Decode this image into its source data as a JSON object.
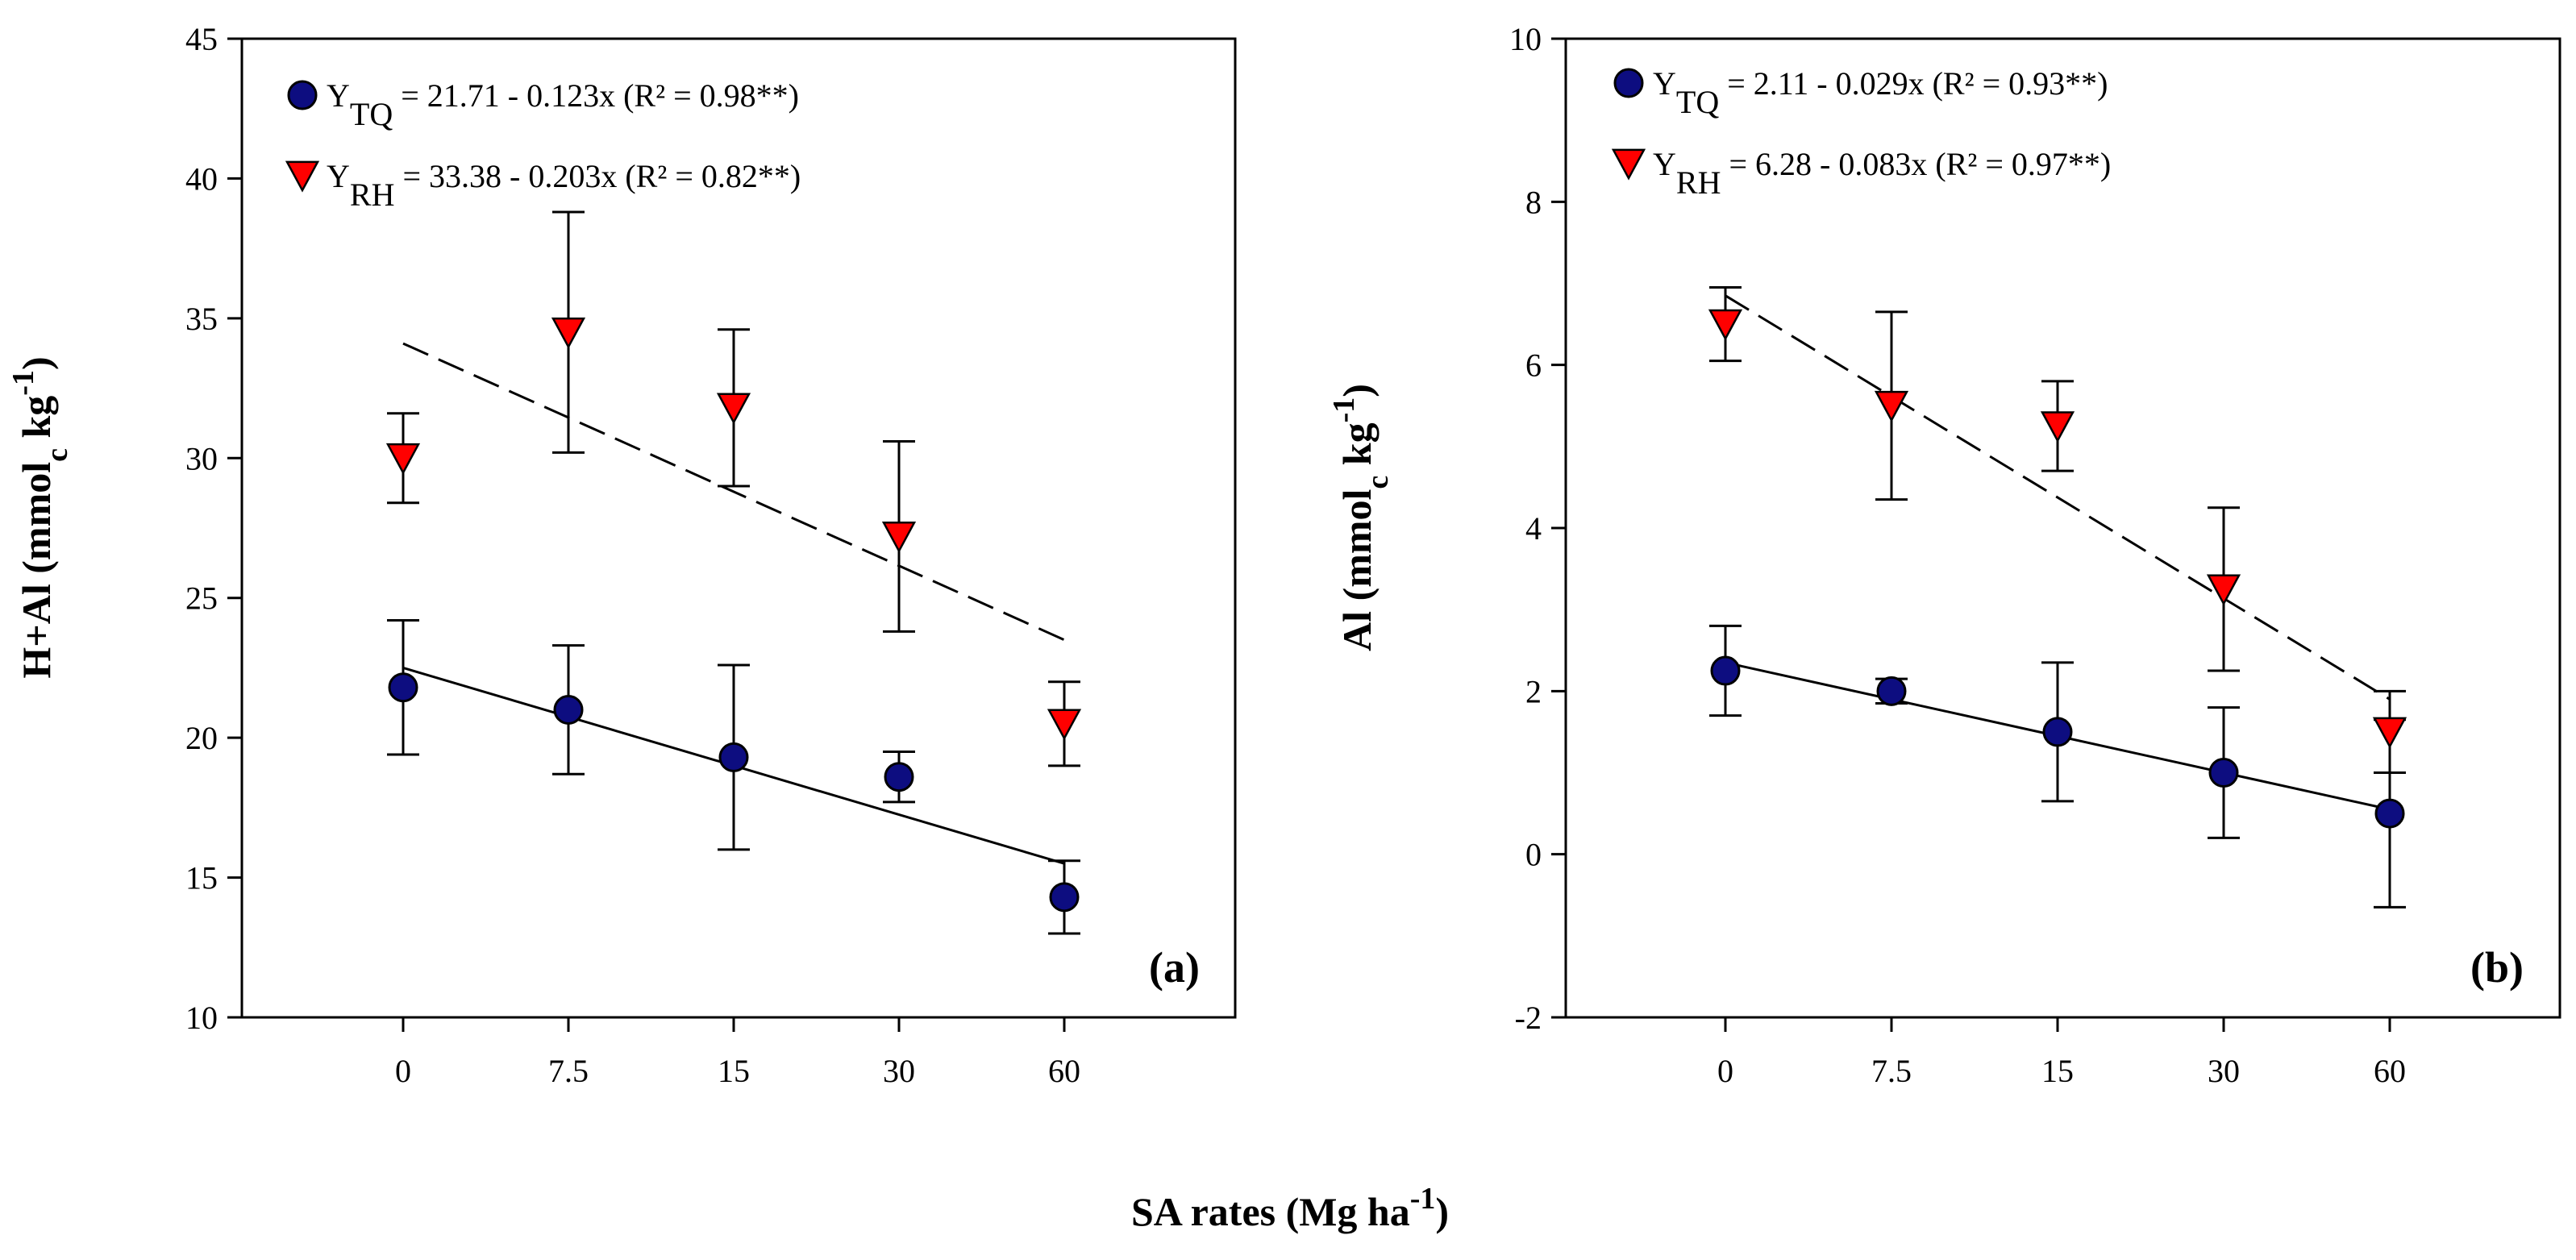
{
  "figure": {
    "shared_xlabel": {
      "main": "SA rates (Mg ha",
      "sup": "-1",
      "close": ")"
    }
  },
  "chart_data": [
    {
      "type": "scatter",
      "panel_label": "(a)",
      "ylabel": {
        "main": "H+Al (mmol",
        "sub": "c",
        "mid": " kg",
        "sup": "-1",
        "close": ")"
      },
      "categories": [
        "0",
        "7.5",
        "15",
        "30",
        "60"
      ],
      "ylim": [
        10,
        45
      ],
      "yticks": [
        10,
        15,
        20,
        25,
        30,
        35,
        40,
        45
      ],
      "series": [
        {
          "name": "TQ",
          "marker": "circle",
          "color": "#0d0d80",
          "values": [
            21.8,
            21.0,
            19.3,
            18.6,
            14.3
          ],
          "errors": [
            2.4,
            2.3,
            3.3,
            0.9,
            1.3
          ],
          "fit": {
            "start": 22.5,
            "end": 15.5,
            "dash": "solid"
          },
          "legend": {
            "base": "Y",
            "sub": "TQ",
            "text": " = 21.71 - 0.123x (R² = 0.98**)"
          }
        },
        {
          "name": "RH",
          "marker": "triangle-down",
          "color": "#ff0000",
          "values": [
            30.0,
            34.5,
            31.8,
            27.2,
            20.5
          ],
          "errors": [
            1.6,
            4.3,
            2.8,
            3.4,
            1.5
          ],
          "fit": {
            "start": 34.1,
            "end": 23.5,
            "dash": "dashed"
          },
          "legend": {
            "base": "Y",
            "sub": "RH",
            "text": " = 33.38 - 0.203x (R² = 0.82**)"
          }
        }
      ]
    },
    {
      "type": "scatter",
      "panel_label": "(b)",
      "ylabel": {
        "main": "Al (mmol",
        "sub": "c",
        "mid": " kg",
        "sup": "-1",
        "close": ")"
      },
      "categories": [
        "0",
        "7.5",
        "15",
        "30",
        "60"
      ],
      "ylim": [
        -2,
        10
      ],
      "yticks": [
        -2,
        0,
        2,
        4,
        6,
        8,
        10
      ],
      "series": [
        {
          "name": "TQ",
          "marker": "circle",
          "color": "#0d0d80",
          "values": [
            2.25,
            2.0,
            1.5,
            1.0,
            0.5
          ],
          "errors": [
            0.55,
            0.15,
            0.85,
            0.8,
            1.15
          ],
          "fit": {
            "start": 2.35,
            "end": 0.55,
            "dash": "solid"
          },
          "legend": {
            "base": "Y",
            "sub": "TQ",
            "text": " = 2.11 - 0.029x (R² = 0.93**)"
          }
        },
        {
          "name": "RH",
          "marker": "triangle-down",
          "color": "#ff0000",
          "values": [
            6.5,
            5.5,
            5.25,
            3.25,
            1.5
          ],
          "errors": [
            0.45,
            1.15,
            0.55,
            1.0,
            0.5
          ],
          "fit": {
            "start": 6.85,
            "end": 1.9,
            "dash": "dashed"
          },
          "legend": {
            "base": "Y",
            "sub": "RH",
            "text": " = 6.28 - 0.083x (R² = 0.97**)"
          }
        }
      ]
    }
  ]
}
